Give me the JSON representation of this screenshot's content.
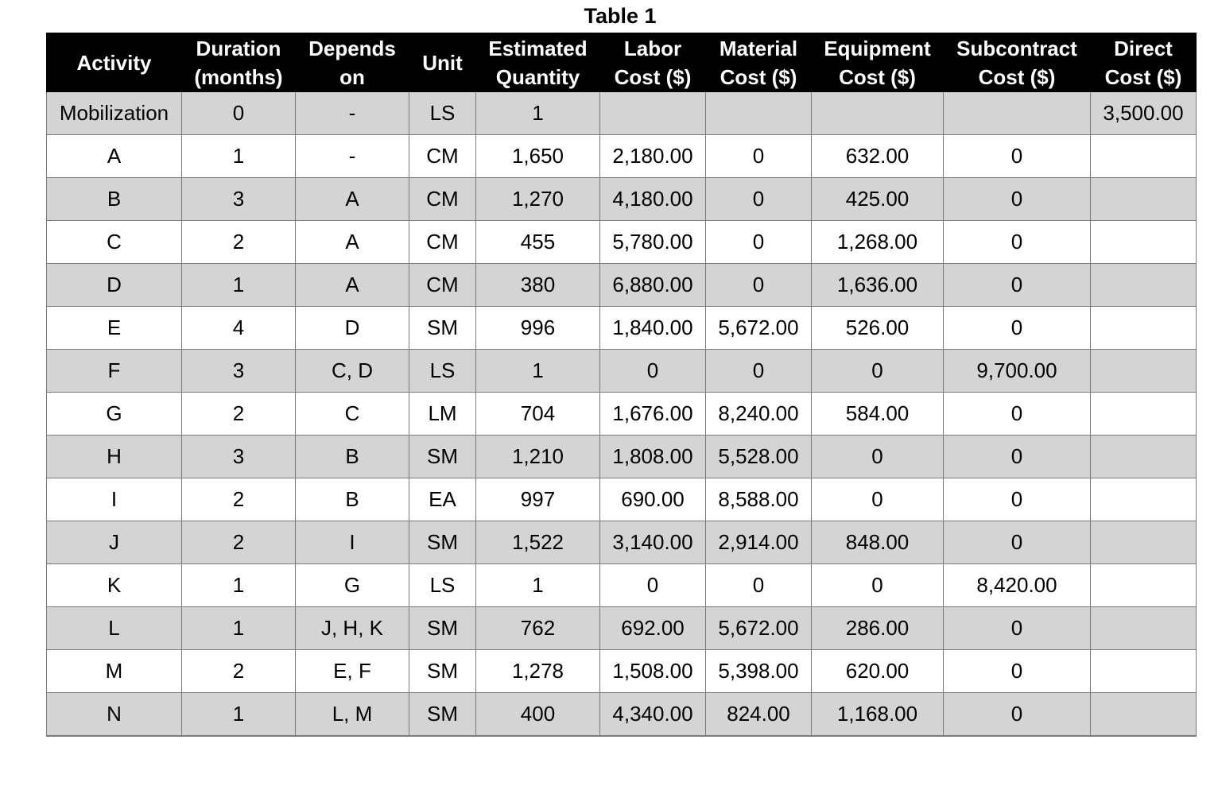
{
  "title": "Table 1",
  "headers": [
    [
      "Activity"
    ],
    [
      "Duration",
      "(months)"
    ],
    [
      "Depends",
      "on"
    ],
    [
      "Unit"
    ],
    [
      "Estimated",
      "Quantity"
    ],
    [
      "Labor",
      "Cost ($)"
    ],
    [
      "Material",
      "Cost ($)"
    ],
    [
      "Equipment",
      "Cost ($)"
    ],
    [
      "Subcontract",
      "Cost ($)"
    ],
    [
      "Direct",
      "Cost ($)"
    ]
  ],
  "rows": [
    [
      "Mobilization",
      "0",
      "-",
      "LS",
      "1",
      "",
      "",
      "",
      "",
      "3,500.00"
    ],
    [
      "A",
      "1",
      "-",
      "CM",
      "1,650",
      "2,180.00",
      "0",
      "632.00",
      "0",
      ""
    ],
    [
      "B",
      "3",
      "A",
      "CM",
      "1,270",
      "4,180.00",
      "0",
      "425.00",
      "0",
      ""
    ],
    [
      "C",
      "2",
      "A",
      "CM",
      "455",
      "5,780.00",
      "0",
      "1,268.00",
      "0",
      ""
    ],
    [
      "D",
      "1",
      "A",
      "CM",
      "380",
      "6,880.00",
      "0",
      "1,636.00",
      "0",
      ""
    ],
    [
      "E",
      "4",
      "D",
      "SM",
      "996",
      "1,840.00",
      "5,672.00",
      "526.00",
      "0",
      ""
    ],
    [
      "F",
      "3",
      "C, D",
      "LS",
      "1",
      "0",
      "0",
      "0",
      "9,700.00",
      ""
    ],
    [
      "G",
      "2",
      "C",
      "LM",
      "704",
      "1,676.00",
      "8,240.00",
      "584.00",
      "0",
      ""
    ],
    [
      "H",
      "3",
      "B",
      "SM",
      "1,210",
      "1,808.00",
      "5,528.00",
      "0",
      "0",
      ""
    ],
    [
      "I",
      "2",
      "B",
      "EA",
      "997",
      "690.00",
      "8,588.00",
      "0",
      "0",
      ""
    ],
    [
      "J",
      "2",
      "I",
      "SM",
      "1,522",
      "3,140.00",
      "2,914.00",
      "848.00",
      "0",
      ""
    ],
    [
      "K",
      "1",
      "G",
      "LS",
      "1",
      "0",
      "0",
      "0",
      "8,420.00",
      ""
    ],
    [
      "L",
      "1",
      "J, H, K",
      "SM",
      "762",
      "692.00",
      "5,672.00",
      "286.00",
      "0",
      ""
    ],
    [
      "M",
      "2",
      "E, F",
      "SM",
      "1,278",
      "1,508.00",
      "5,398.00",
      "620.00",
      "0",
      ""
    ],
    [
      "N",
      "1",
      "L, M",
      "SM",
      "400",
      "4,340.00",
      "824.00",
      "1,168.00",
      "0",
      ""
    ]
  ],
  "colors": {
    "header_bg": "#000000",
    "header_text": "#ffffff",
    "row_shaded": "#d4d4d4",
    "row_plain": "#ffffff",
    "grid": "#7a7a7a"
  }
}
